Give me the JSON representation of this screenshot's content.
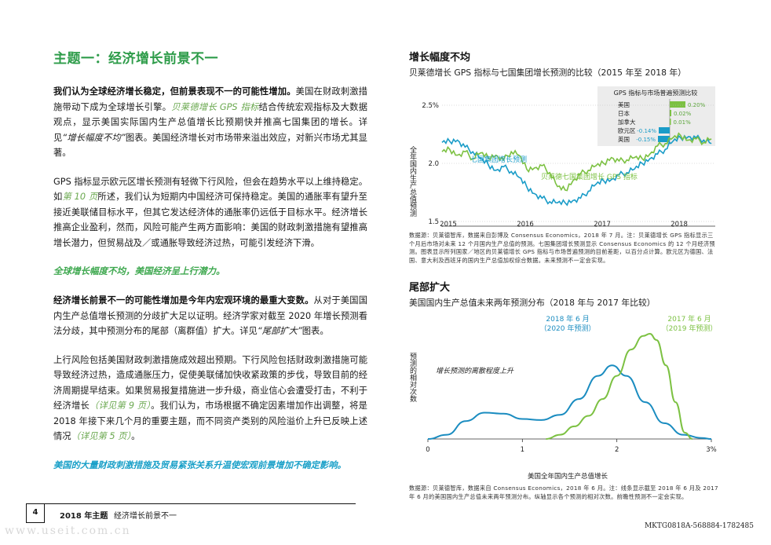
{
  "section_title": "主题一：经济增长前景不一",
  "p1": {
    "bold": "我们认为全球经济增长稳定，但前景表现不一的可能性增加。",
    "t1": "美国在财政刺激措施带动下成为全球增长引擎。",
    "link": "贝莱德增长 GPS 指标",
    "t2": "结合传统宏观指标及大数据观点，显示美国实际国内生产总值增长比预期快并推高七国集团的增长。详见",
    "ref": "“增长幅度不均”",
    "t3": "图表。美国经济增长对市场带来溢出效应，对新兴市场尤其显著。"
  },
  "p2": {
    "t1": "GPS 指标显示欧元区增长预测有轻微下行风险，但会在趋势水平以上维持稳定。如",
    "link": "第 10 页",
    "t2": "所述，我们认为短期内中国经济可保持稳定。美国的通胀率有望升至接近美联储目标水平，但其它发达经济体的通胀率仍远低于目标水平。经济增长推高企业盈利，然而，风险可能产生两方面影响：美国的财政刺激措施有望推高增长潜力，但贸易战及／或通胀导致经济过热，可能引发经济下滑。"
  },
  "callout1": "全球增长幅度不均，美国经济呈上行潜力。",
  "p3": {
    "bold": "经济增长前景不一的可能性增加是今年内宏观环境的最重大变数。",
    "t1": "从对于美国国内生产总值增长预测的分歧扩大足以证明。经济学家对截至 2020 年增长预测看法分歧，其中预测分布的尾部（离群值）扩大。详见",
    "ref": "“尾部扩大”",
    "t2": "图表。"
  },
  "p4": {
    "t1": "上行风险包括美国财政刺激措施成效超出预期。下行风险包括财政刺激措施可能导致经济过热，造成通胀压力，促使美联储加快收紧政策的步伐，导致目前的经济周期提早结束。如果贸易报复措施进一步升级，商业信心会遭受打击，不利于经济增长",
    "link1": "（详见第 9 页）",
    "t2": "。我们认为，市场根据不确定因素增加作出调整，将是 2018 年接下来几个月的重要主题，而不同资产类别的风险溢价上升已反映上述情况",
    "link2": "（详见第 5 页）",
    "t3": "。"
  },
  "callout2": "美国的大量财政刺激措施及贸易紧张关系升温使宏观前景增加不确定影响。",
  "chart1": {
    "title": "增长幅度不均",
    "subtitle": "贝莱德增长 GPS 指标与七国集团增长预测的比较（2015 年至 2018 年）",
    "ylabel": "全年国内生产总值预测",
    "source": "数据源：贝莱德智库，数据来自彭博及 Consensus Economics，2018 年 7 月。注：贝莱德增长 GPS 指标显示三个月后市场对未来 12 个月国内生产总值的预测。七国集团增长预测显示 Consensus Economics 的 12 个月经济预测。图表显示所列国家／地区的贝莱德增长 GPS 指标与市场普遍预测的目前差距，以百分点计算。欧元区为德国、法国、意大利及西班牙的国内生产总值加权综合数据。未来预测不一定会实现。",
    "inset_title": "GPS 指标与市场普遍预测比较",
    "inset": [
      {
        "label": "美国",
        "value": 0.2,
        "text": "0.20%"
      },
      {
        "label": "日本",
        "value": 0.02,
        "text": "0.02%"
      },
      {
        "label": "加拿大",
        "value": 0.01,
        "text": "0.01%"
      },
      {
        "label": "欧元区",
        "value": -0.14,
        "text": "-0.14%"
      },
      {
        "label": "英国",
        "value": -0.15,
        "text": "-0.15%"
      }
    ]
  },
  "chart2": {
    "title": "尾部扩大",
    "subtitle": "美国国内生产总值未来两年预测分布（2018 年与 2017 年比较）",
    "ylabel": "预测的相对次数",
    "xlabel": "美国全年国内生产总值增长",
    "annotation": "增长预测的离散程度上升",
    "series_a_label": [
      "2018 年 6 月",
      "（2020 年预测）"
    ],
    "series_b_label": [
      "2017 年 6 月",
      "（2019 年预测）"
    ],
    "source": "数据源：贝莱德智库，数据来自 Consensus Economics，2018 年 6 月。注：线条显示截至 2018 年 6 月及 2017 年 6 月的美国国内生产总值未来两年预测分布。纵轴显示各个预测的相对次数。前瞻性预测不一定会实现。"
  },
  "chart_data": [
    {
      "type": "line",
      "title": "增长幅度不均",
      "x": [
        "2015",
        "2016",
        "2017",
        "2018"
      ],
      "ylim": [
        1.5,
        2.5
      ],
      "yticks": [
        "2.5%",
        "2.0",
        "1.5"
      ],
      "xticks": [
        "2015",
        "2016",
        "2017",
        "2018"
      ],
      "series": [
        {
          "name": "七国集团增长预测",
          "color": "#1a9cc8",
          "points": [
            [
              2015.0,
              2.18
            ],
            [
              2015.1,
              2.19
            ],
            [
              2015.2,
              2.2
            ],
            [
              2015.3,
              2.14
            ],
            [
              2015.4,
              2.1
            ],
            [
              2015.5,
              2.04
            ],
            [
              2015.6,
              1.99
            ],
            [
              2015.7,
              1.94
            ],
            [
              2015.8,
              1.97
            ],
            [
              2015.9,
              1.93
            ],
            [
              2016.0,
              1.88
            ],
            [
              2016.1,
              1.8
            ],
            [
              2016.2,
              1.74
            ],
            [
              2016.3,
              1.7
            ],
            [
              2016.4,
              1.67
            ],
            [
              2016.5,
              1.66
            ],
            [
              2016.6,
              1.66
            ],
            [
              2016.7,
              1.68
            ],
            [
              2016.8,
              1.7
            ],
            [
              2016.9,
              1.76
            ],
            [
              2017.0,
              1.82
            ],
            [
              2017.1,
              1.85
            ],
            [
              2017.2,
              1.86
            ],
            [
              2017.3,
              1.9
            ],
            [
              2017.4,
              1.92
            ],
            [
              2017.5,
              1.95
            ],
            [
              2017.6,
              2.0
            ],
            [
              2017.7,
              2.04
            ],
            [
              2017.8,
              2.08
            ],
            [
              2017.9,
              2.12
            ],
            [
              2018.0,
              2.19
            ],
            [
              2018.1,
              2.22
            ],
            [
              2018.2,
              2.23
            ],
            [
              2018.3,
              2.22
            ],
            [
              2018.4,
              2.2
            ],
            [
              2018.5,
              2.17
            ]
          ]
        },
        {
          "name": "贝莱德七国集团增长 GPS 指标",
          "color": "#7cc142",
          "points": [
            [
              2015.0,
              2.1
            ],
            [
              2015.1,
              2.12
            ],
            [
              2015.2,
              2.07
            ],
            [
              2015.3,
              2.1
            ],
            [
              2015.4,
              2.04
            ],
            [
              2015.5,
              2.09
            ],
            [
              2015.6,
              2.05
            ],
            [
              2015.7,
              2.07
            ],
            [
              2015.8,
              2.03
            ],
            [
              2015.9,
              2.1
            ],
            [
              2016.0,
              2.07
            ],
            [
              2016.1,
              1.95
            ],
            [
              2016.2,
              1.96
            ],
            [
              2016.3,
              1.98
            ],
            [
              2016.4,
              1.92
            ],
            [
              2016.5,
              1.8
            ],
            [
              2016.6,
              1.77
            ],
            [
              2016.7,
              1.85
            ],
            [
              2016.8,
              1.91
            ],
            [
              2016.9,
              1.94
            ],
            [
              2017.0,
              1.98
            ],
            [
              2017.1,
              2.0
            ],
            [
              2017.2,
              2.05
            ],
            [
              2017.3,
              2.02
            ],
            [
              2017.4,
              2.03
            ],
            [
              2017.5,
              2.05
            ],
            [
              2017.6,
              2.04
            ],
            [
              2017.7,
              2.08
            ],
            [
              2017.8,
              2.15
            ],
            [
              2017.9,
              2.17
            ],
            [
              2018.0,
              2.22
            ],
            [
              2018.1,
              2.24
            ],
            [
              2018.2,
              2.2
            ],
            [
              2018.3,
              2.21
            ],
            [
              2018.4,
              2.18
            ],
            [
              2018.5,
              2.21
            ]
          ]
        }
      ]
    },
    {
      "type": "line",
      "title": "尾部扩大",
      "xlabel": "美国全年国内生产总值增长",
      "ylabel": "预测的相对次数",
      "xlim": [
        0,
        3
      ],
      "xticks": [
        "0",
        "1",
        "2",
        "3%"
      ],
      "series": [
        {
          "name": "2018 年 6 月（2020 年预测）",
          "color": "#1a8cc0",
          "points": [
            [
              0.0,
              0.0
            ],
            [
              0.2,
              0.04
            ],
            [
              0.4,
              0.17
            ],
            [
              0.6,
              0.25
            ],
            [
              0.8,
              0.24
            ],
            [
              1.0,
              0.19
            ],
            [
              1.2,
              0.18
            ],
            [
              1.4,
              0.23
            ],
            [
              1.6,
              0.38
            ],
            [
              1.8,
              0.6
            ],
            [
              1.95,
              0.7
            ],
            [
              2.1,
              0.6
            ],
            [
              2.3,
              0.35
            ],
            [
              2.5,
              0.15
            ],
            [
              2.7,
              0.04
            ],
            [
              2.9,
              0.01
            ],
            [
              3.0,
              0.0
            ]
          ]
        },
        {
          "name": "2017 年 6 月（2019 年预测）",
          "color": "#7cc142",
          "points": [
            [
              1.25,
              0.0
            ],
            [
              1.4,
              0.04
            ],
            [
              1.55,
              0.12
            ],
            [
              1.7,
              0.22
            ],
            [
              1.85,
              0.38
            ],
            [
              2.0,
              0.6
            ],
            [
              2.15,
              0.85
            ],
            [
              2.28,
              0.98
            ],
            [
              2.35,
              1.0
            ],
            [
              2.42,
              0.94
            ],
            [
              2.52,
              0.7
            ],
            [
              2.62,
              0.35
            ],
            [
              2.72,
              0.06
            ],
            [
              2.8,
              0.0
            ]
          ]
        }
      ]
    }
  ],
  "footer": {
    "page": "4",
    "title": "2018 年主题",
    "subtitle": "经济增长前景不一",
    "docid": "MKTG0818A-568884-1782485",
    "watermark": "www.useit.com.cn"
  }
}
